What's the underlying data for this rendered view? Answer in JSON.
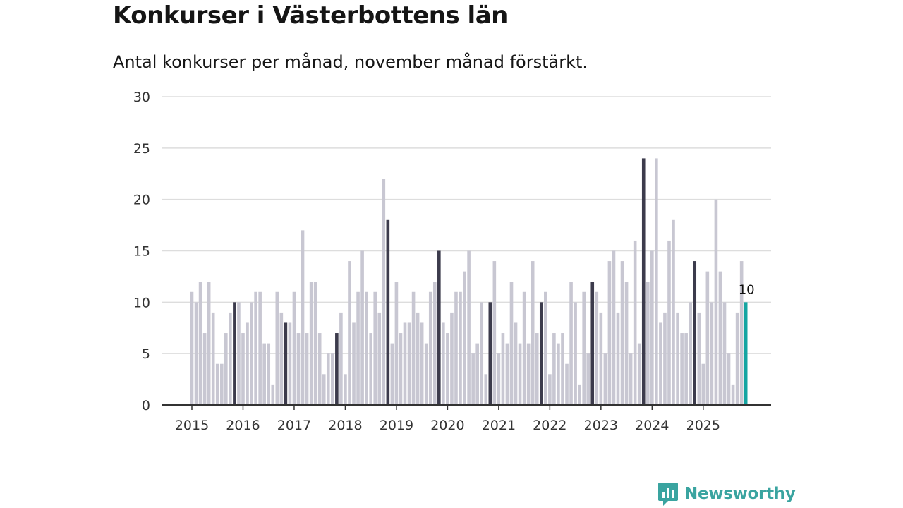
{
  "title": "Konkurser i Västerbottens län",
  "subtitle": "Antal konkurser per månad, november månad förstärkt.",
  "brand": "Newsworthy",
  "colors": {
    "bar": "#c8c7d2",
    "highlight": "#3c3b4c",
    "current": "#15a5a2",
    "grid": "#dddddd",
    "axis": "#333333",
    "brand": "#3aa4a0"
  },
  "chart_data": {
    "type": "bar",
    "title": "Konkurser i Västerbottens län",
    "xlabel": "",
    "ylabel": "",
    "ylim": [
      0,
      30
    ],
    "yticks": [
      0,
      5,
      10,
      15,
      20,
      25,
      30
    ],
    "x_tick_labels": [
      "2015",
      "2016",
      "2017",
      "2018",
      "2019",
      "2020",
      "2021",
      "2022",
      "2023",
      "2024",
      "2025"
    ],
    "start": "2015-01",
    "highlight_month": "november",
    "values": [
      11,
      10,
      12,
      7,
      12,
      9,
      4,
      4,
      7,
      9,
      10,
      10,
      7,
      8,
      10,
      11,
      11,
      6,
      6,
      2,
      11,
      9,
      8,
      8,
      11,
      7,
      17,
      7,
      12,
      12,
      7,
      3,
      5,
      5,
      7,
      9,
      3,
      14,
      8,
      11,
      15,
      11,
      7,
      11,
      9,
      22,
      18,
      6,
      12,
      7,
      8,
      8,
      11,
      9,
      8,
      6,
      11,
      12,
      15,
      8,
      7,
      9,
      11,
      11,
      13,
      15,
      5,
      6,
      10,
      3,
      10,
      14,
      5,
      7,
      6,
      12,
      8,
      6,
      11,
      6,
      14,
      7,
      10,
      11,
      3,
      7,
      6,
      7,
      4,
      12,
      10,
      2,
      11,
      5,
      12,
      11,
      9,
      5,
      14,
      15,
      9,
      14,
      12,
      5,
      16,
      6,
      24,
      12,
      15,
      24,
      8,
      9,
      16,
      18,
      9,
      7,
      7,
      10,
      14,
      9,
      4,
      13,
      10,
      20,
      13,
      10,
      5,
      2,
      9,
      14,
      10
    ],
    "last_value_label": "10"
  }
}
